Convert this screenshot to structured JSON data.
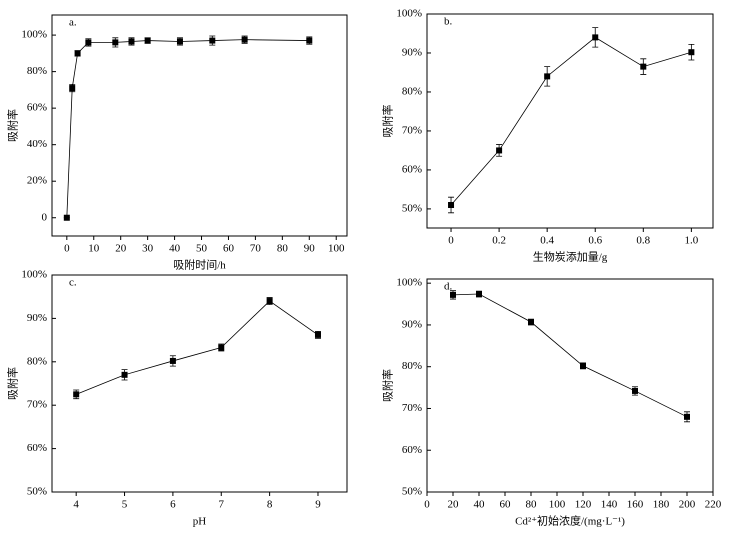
{
  "chart_data": [
    {
      "type": "line",
      "annotation": "a.",
      "x_label": "吸附时间/h",
      "y_label": "吸附率",
      "color": "#000000",
      "x": [
        0,
        2,
        4,
        8,
        18,
        24,
        30,
        42,
        54,
        66,
        90
      ],
      "values": [
        0,
        71,
        90,
        96,
        96,
        96.5,
        97,
        96.5,
        97,
        97.5,
        97
      ],
      "errors": [
        0,
        2,
        1.5,
        2,
        2.5,
        2,
        1.5,
        2,
        2.5,
        2,
        2
      ],
      "xlim": [
        -5.5,
        104
      ],
      "ylim": [
        -10,
        111
      ],
      "xticks": [
        0,
        10,
        20,
        30,
        40,
        50,
        60,
        70,
        80,
        90,
        100
      ],
      "yticks": [
        0,
        {
          "value": 20,
          "label": "20%"
        },
        {
          "value": 40,
          "label": "40%"
        },
        {
          "value": 60,
          "label": "60%"
        },
        {
          "value": 80,
          "label": "80%"
        },
        {
          "value": 100,
          "label": "100%"
        }
      ]
    },
    {
      "type": "line",
      "annotation": "b.",
      "x_label": "生物炭添加量/g",
      "y_label": "吸附率",
      "color": "#000000",
      "x": [
        0,
        0.2,
        0.4,
        0.6,
        0.8,
        1.0
      ],
      "values": [
        51,
        65,
        84,
        94,
        86.5,
        90.2
      ],
      "errors": [
        2,
        1.5,
        2.5,
        2.5,
        2,
        2
      ],
      "xlim": [
        -0.1,
        1.09
      ],
      "ylim": [
        45.1,
        100
      ],
      "xticks": [
        0,
        0.2,
        0.4,
        0.6,
        0.8,
        {
          "value": 1,
          "label": "1.0"
        }
      ],
      "yticks": [
        {
          "value": 50,
          "label": "50%"
        },
        {
          "value": 60,
          "label": "60%"
        },
        {
          "value": 70,
          "label": "70%"
        },
        {
          "value": 80,
          "label": "80%"
        },
        {
          "value": 90,
          "label": "90%"
        },
        {
          "value": 100,
          "label": "100%"
        }
      ]
    },
    {
      "type": "line",
      "annotation": "c.",
      "x_label": "pH",
      "y_label": "吸附率",
      "color": "#000000",
      "x": [
        4,
        5,
        6,
        7,
        8,
        9
      ],
      "values": [
        72.5,
        77,
        80.2,
        83.3,
        94,
        86.2
      ],
      "errors": [
        1,
        1.2,
        1.2,
        0.8,
        0.8,
        0.8
      ],
      "xlim": [
        3.5,
        9.6
      ],
      "ylim": [
        50,
        100
      ],
      "xticks": [
        4,
        5,
        6,
        7,
        8,
        9
      ],
      "yticks": [
        {
          "value": 50,
          "label": "50%"
        },
        {
          "value": 60,
          "label": "60%"
        },
        {
          "value": 70,
          "label": "70%"
        },
        {
          "value": 80,
          "label": "80%"
        },
        {
          "value": 90,
          "label": "90%"
        },
        {
          "value": 100,
          "label": "100%"
        }
      ]
    },
    {
      "type": "line",
      "annotation": "d.",
      "x_label": "Cd²⁺初始浓度/(mg·L⁻¹)",
      "y_label": "吸附率",
      "color": "#000000",
      "x": [
        20,
        40,
        80,
        120,
        160,
        200
      ],
      "values": [
        97.2,
        97.4,
        90.7,
        80.2,
        74.2,
        68
      ],
      "errors": [
        1,
        0.7,
        0.7,
        0.7,
        1,
        1.2
      ],
      "xlim": [
        0,
        220
      ],
      "ylim": [
        50,
        101
      ],
      "xticks": [
        0,
        20,
        40,
        60,
        80,
        100,
        120,
        140,
        160,
        180,
        200,
        220
      ],
      "yticks": [
        {
          "value": 50,
          "label": "50%"
        },
        {
          "value": 60,
          "label": "60%"
        },
        {
          "value": 70,
          "label": "70%"
        },
        {
          "value": 80,
          "label": "80%"
        },
        {
          "value": 90,
          "label": "90%"
        },
        {
          "value": 100,
          "label": "100%"
        }
      ]
    }
  ]
}
